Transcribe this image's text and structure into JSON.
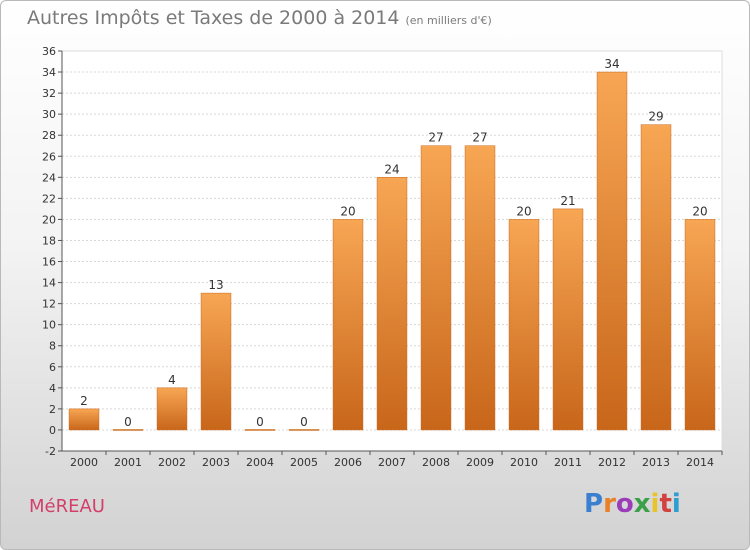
{
  "header": {
    "title": "Autres Impôts et Taxes de 2000 à 2014",
    "subtitle": "(en milliers d'€)"
  },
  "footer": {
    "place": "MéREAU",
    "logo": [
      "P",
      "r",
      "o",
      "x",
      "i",
      "t",
      "i"
    ],
    "logo_colors": [
      "#3a7fd0",
      "#e8822a",
      "#9b3cb8",
      "#3aa04a",
      "#e8c32a",
      "#d24040",
      "#2a9fd0"
    ]
  },
  "chart_data": {
    "type": "bar",
    "title": "Autres Impôts et Taxes de 2000 à 2014",
    "subtitle": "(en milliers d'€)",
    "categories": [
      "2000",
      "2001",
      "2002",
      "2003",
      "2004",
      "2005",
      "2006",
      "2007",
      "2008",
      "2009",
      "2010",
      "2011",
      "2012",
      "2013",
      "2014"
    ],
    "values": [
      2,
      0,
      4,
      13,
      0,
      0,
      20,
      24,
      27,
      27,
      20,
      21,
      34,
      29,
      20
    ],
    "value_labels": [
      "2",
      "0",
      "4",
      "13",
      "0",
      "0",
      "20",
      "24",
      "27",
      "27",
      "20",
      "21",
      "34",
      "29",
      "20"
    ],
    "yticks": [
      "-2",
      "0",
      "2",
      "4",
      "6",
      "8",
      "10",
      "12",
      "14",
      "16",
      "18",
      "20",
      "22",
      "24",
      "26",
      "28",
      "30",
      "32",
      "34",
      "36"
    ],
    "ylim": [
      -2,
      36
    ],
    "ytick_step": 2,
    "grid": true,
    "bar_color": "#e8822a",
    "bar_color_light": "#f7a654",
    "bar_color_dark": "#c8661a",
    "xlabel": "",
    "ylabel": ""
  }
}
